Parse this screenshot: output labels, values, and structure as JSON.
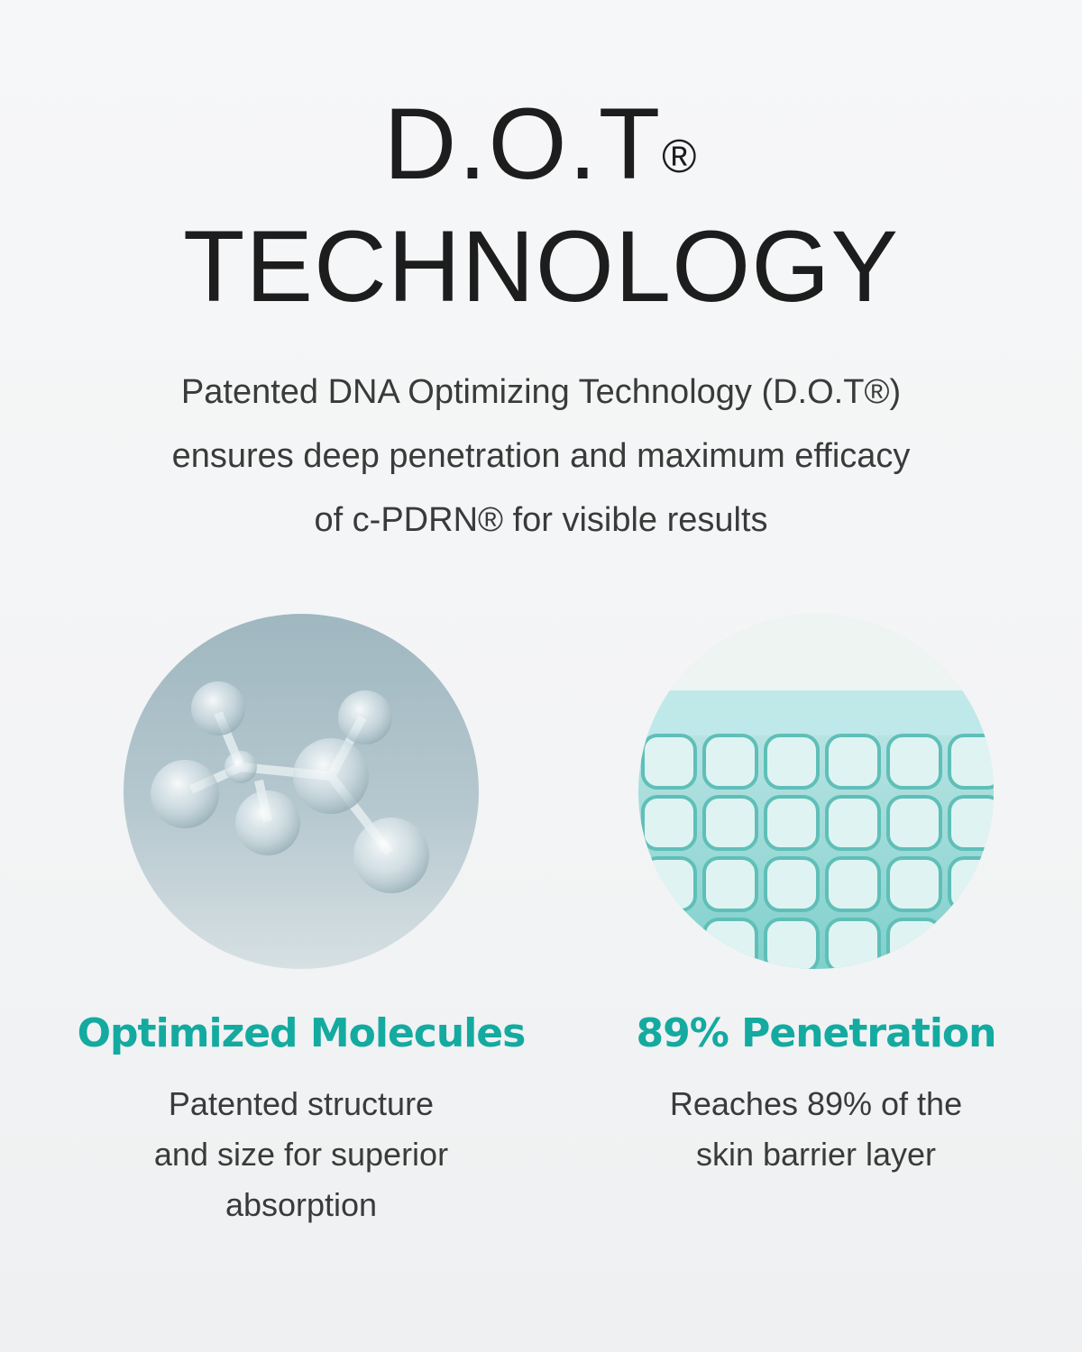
{
  "title": {
    "line1": "D.O.T",
    "registered": "®",
    "line2": "TECHNOLOGY"
  },
  "intro": {
    "lines": [
      "Patented DNA Optimizing Technology (D.O.T®)",
      "ensures deep penetration and maximum efficacy",
      "of c-PDRN®  for visible results"
    ]
  },
  "features": [
    {
      "image": "glass-molecule",
      "heading": "Optimized Molecules",
      "description": [
        "Patented structure",
        "and size for superior",
        "absorption"
      ]
    },
    {
      "image": "teal-cell-grid",
      "heading": "89% Penetration",
      "description": [
        "Reaches 89% of the",
        "skin barrier layer"
      ]
    }
  ],
  "colors": {
    "accent": "#14aaa0",
    "text": "#3a3a3a",
    "title": "#1d1d1d"
  }
}
